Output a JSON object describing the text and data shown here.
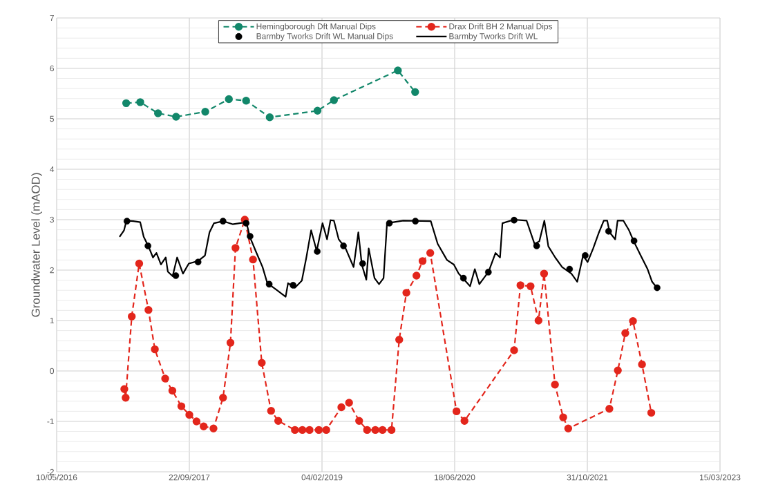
{
  "chart_data": {
    "type": "line",
    "ylabel": "Groundwater Level (mAOD)",
    "xlim": [
      "2016-05-10",
      "2023-03-15"
    ],
    "xticks": [
      {
        "value": "2016-05-10",
        "label": "10/05/2016"
      },
      {
        "value": "2017-09-22",
        "label": "22/09/2017"
      },
      {
        "value": "2019-02-04",
        "label": "04/02/2019"
      },
      {
        "value": "2020-06-18",
        "label": "18/06/2020"
      },
      {
        "value": "2021-10-31",
        "label": "31/10/2021"
      },
      {
        "value": "2023-03-15",
        "label": "15/03/2023"
      }
    ],
    "ylim": [
      -2,
      7
    ],
    "yticks": [
      -2,
      -1,
      0,
      1,
      2,
      3,
      4,
      5,
      6,
      7
    ],
    "grid": true,
    "legend": "top",
    "series": [
      {
        "name": "Hemingborough Dft Manual Dips",
        "color": "#12876a",
        "marker": "circle",
        "line_style": "dashed",
        "x": [
          "2017-01-27",
          "2017-03-21",
          "2017-05-27",
          "2017-08-03",
          "2017-11-21",
          "2018-02-18",
          "2018-04-24",
          "2018-07-22",
          "2019-01-18",
          "2019-03-21",
          "2019-11-17",
          "2020-01-21"
        ],
        "values": [
          5.31,
          5.33,
          5.11,
          5.04,
          5.14,
          5.39,
          5.36,
          5.03,
          5.16,
          5.37,
          5.96,
          5.53
        ]
      },
      {
        "name": "Drax Drift BH 2 Manual Dips",
        "color": "#e3261c",
        "marker": "circle",
        "line_style": "dashed",
        "x": [
          "2017-01-20",
          "2017-01-25",
          "2017-02-17",
          "2017-03-17",
          "2017-04-21",
          "2017-05-15",
          "2017-06-23",
          "2017-07-20",
          "2017-08-23",
          "2017-09-22",
          "2017-10-19",
          "2017-11-15",
          "2017-12-22",
          "2018-01-27",
          "2018-02-24",
          "2018-03-15",
          "2018-04-19",
          "2018-05-20",
          "2018-06-22",
          "2018-07-27",
          "2018-08-23",
          "2018-10-25",
          "2018-11-22",
          "2018-12-19",
          "2019-01-23",
          "2019-02-20",
          "2019-04-18",
          "2019-05-17",
          "2019-06-24",
          "2019-07-24",
          "2019-08-24",
          "2019-09-20",
          "2019-10-24",
          "2019-11-22",
          "2019-12-19",
          "2020-01-26",
          "2020-02-18",
          "2020-03-18",
          "2020-06-25",
          "2020-07-25",
          "2021-01-28",
          "2021-02-21",
          "2021-03-31",
          "2021-04-30",
          "2021-05-21",
          "2021-07-01",
          "2021-08-01",
          "2021-08-20",
          "2022-01-22",
          "2022-02-23",
          "2022-03-23",
          "2022-04-21",
          "2022-05-25",
          "2022-06-29"
        ],
        "values": [
          -0.36,
          -0.53,
          1.08,
          2.13,
          1.21,
          0.43,
          -0.15,
          -0.39,
          -0.7,
          -0.87,
          -1.0,
          -1.1,
          -1.14,
          -0.53,
          0.56,
          2.44,
          3.0,
          2.21,
          0.16,
          -0.79,
          -0.99,
          -1.17,
          -1.17,
          -1.17,
          -1.17,
          -1.17,
          -0.72,
          -0.63,
          -0.99,
          -1.17,
          -1.17,
          -1.17,
          -1.17,
          0.62,
          1.55,
          1.89,
          2.18,
          2.34,
          -0.8,
          -0.99,
          0.41,
          1.7,
          1.68,
          1.0,
          1.93,
          -0.27,
          -0.92,
          -1.14,
          -0.75,
          0.01,
          0.75,
          0.99,
          0.13,
          -0.83
        ]
      },
      {
        "name": "Barmby Tworks Drift WL Manual Dips",
        "color": "#000000",
        "type": "scatter",
        "marker": "circle",
        "x": [
          "2017-01-30",
          "2017-04-19",
          "2017-08-02",
          "2017-10-25",
          "2018-01-27",
          "2018-04-24",
          "2018-05-09",
          "2018-07-20",
          "2018-10-18",
          "2019-01-17",
          "2019-04-26",
          "2019-07-07",
          "2019-10-16",
          "2020-01-22",
          "2020-07-21",
          "2020-10-23",
          "2021-01-28",
          "2021-04-23",
          "2021-08-25",
          "2021-10-23",
          "2022-01-19",
          "2022-04-25",
          "2022-07-21"
        ],
        "values": [
          2.97,
          2.48,
          1.89,
          2.16,
          2.97,
          2.93,
          2.67,
          1.72,
          1.7,
          2.37,
          2.48,
          2.13,
          2.93,
          2.97,
          1.84,
          1.96,
          2.99,
          2.48,
          2.02,
          2.29,
          2.77,
          2.58,
          1.65
        ]
      },
      {
        "name": "Barmby Tworks Drift WL",
        "color": "#000000",
        "marker": "none",
        "line_style": "solid",
        "x": [
          "2017-01-02",
          "2017-01-19",
          "2017-01-28",
          "2017-02-23",
          "2017-03-21",
          "2017-04-03",
          "2017-04-21",
          "2017-05-08",
          "2017-05-21",
          "2017-06-07",
          "2017-06-25",
          "2017-07-03",
          "2017-07-21",
          "2017-08-07",
          "2017-08-29",
          "2017-09-20",
          "2017-10-25",
          "2017-11-20",
          "2017-12-07",
          "2017-12-24",
          "2018-01-28",
          "2018-03-04",
          "2018-04-25",
          "2018-05-08",
          "2018-05-30",
          "2018-06-25",
          "2018-07-13",
          "2018-08-16",
          "2018-09-20",
          "2018-09-29",
          "2018-10-25",
          "2018-11-20",
          "2018-12-07",
          "2018-12-25",
          "2019-01-15",
          "2019-02-06",
          "2019-02-23",
          "2019-03-08",
          "2019-03-21",
          "2019-04-08",
          "2019-05-04",
          "2019-06-03",
          "2019-06-21",
          "2019-07-04",
          "2019-07-21",
          "2019-07-30",
          "2019-08-21",
          "2019-09-07",
          "2019-09-24",
          "2019-10-07",
          "2019-12-07",
          "2020-03-20",
          "2020-04-15",
          "2020-05-20",
          "2020-06-15",
          "2020-07-03",
          "2020-08-15",
          "2020-09-02",
          "2020-09-19",
          "2020-10-24",
          "2020-11-19",
          "2020-12-06",
          "2020-12-15",
          "2021-01-27",
          "2021-03-16",
          "2021-04-15",
          "2021-05-03",
          "2021-05-22",
          "2021-06-06",
          "2021-07-02",
          "2021-07-28",
          "2021-09-01",
          "2021-09-23",
          "2021-10-15",
          "2021-11-01",
          "2021-11-22",
          "2021-12-14",
          "2022-01-01",
          "2022-01-14",
          "2022-01-23",
          "2022-02-13",
          "2022-02-22",
          "2022-03-16",
          "2022-04-06",
          "2022-04-24",
          "2022-05-20",
          "2022-06-15",
          "2022-07-02",
          "2022-07-20"
        ],
        "values": [
          2.66,
          2.79,
          2.98,
          2.97,
          2.95,
          2.66,
          2.47,
          2.25,
          2.34,
          2.11,
          2.25,
          1.97,
          1.88,
          2.25,
          1.93,
          2.13,
          2.18,
          2.29,
          2.75,
          2.93,
          2.97,
          2.91,
          2.95,
          2.66,
          2.38,
          2.06,
          1.74,
          1.61,
          1.47,
          1.74,
          1.65,
          1.79,
          2.25,
          2.79,
          2.38,
          2.93,
          2.61,
          2.99,
          2.98,
          2.61,
          2.43,
          2.06,
          2.75,
          2.11,
          1.81,
          2.43,
          1.84,
          1.72,
          1.84,
          2.93,
          2.98,
          2.97,
          2.52,
          2.2,
          2.11,
          1.93,
          1.68,
          2.02,
          1.72,
          1.97,
          2.34,
          2.25,
          2.93,
          3.0,
          2.98,
          2.52,
          2.57,
          2.98,
          2.47,
          2.25,
          2.06,
          1.93,
          1.77,
          2.29,
          2.16,
          2.43,
          2.75,
          2.98,
          2.98,
          2.75,
          2.61,
          2.98,
          2.98,
          2.79,
          2.57,
          2.29,
          2.02,
          1.77,
          1.65
        ]
      }
    ]
  }
}
